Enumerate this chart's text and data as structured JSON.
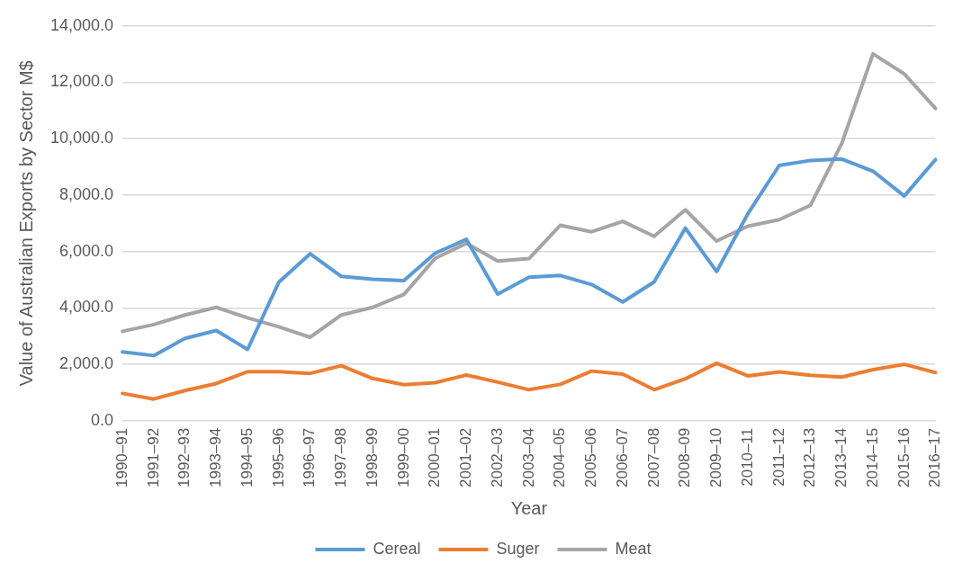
{
  "chart_data": {
    "type": "line",
    "xlabel": "Year",
    "ylabel": "Value of Australian Exports by Sector M$",
    "categories": [
      "1990–91",
      "1991–92",
      "1992–93",
      "1993–94",
      "1994–95",
      "1995–96",
      "1996–97",
      "1997–98",
      "1998–99",
      "1999–00",
      "2000–01",
      "2001–02",
      "2002–03",
      "2003–04",
      "2004–05",
      "2005–06",
      "2006–07",
      "2007–08",
      "2008–09",
      "2009–10",
      "2010–11",
      "2011–12",
      "2012–13",
      "2013–14",
      "2014–15",
      "2015–16",
      "2016–17"
    ],
    "series": [
      {
        "name": "Cereal",
        "color": "#5b9bd5",
        "values": [
          2440,
          2310,
          2920,
          3200,
          2530,
          4910,
          5920,
          5120,
          5020,
          4970,
          5940,
          6430,
          4490,
          5090,
          5150,
          4830,
          4210,
          4920,
          6830,
          5290,
          7340,
          9050,
          9230,
          9280,
          8850,
          7970,
          9260
        ]
      },
      {
        "name": "Suger",
        "color": "#ed7d31",
        "values": [
          970,
          770,
          1070,
          1320,
          1740,
          1740,
          1680,
          1950,
          1500,
          1280,
          1350,
          1620,
          1370,
          1100,
          1290,
          1760,
          1650,
          1100,
          1490,
          2040,
          1590,
          1730,
          1610,
          1550,
          1810,
          2000,
          1710
        ]
      },
      {
        "name": "Meat",
        "color": "#a5a5a5",
        "values": [
          3170,
          3410,
          3750,
          4020,
          3650,
          3330,
          2960,
          3750,
          4020,
          4480,
          5760,
          6290,
          5660,
          5750,
          6930,
          6700,
          7070,
          6540,
          7480,
          6370,
          6900,
          7130,
          7640,
          9830,
          13010,
          12300,
          11070
        ]
      }
    ],
    "ylim": [
      0,
      14000
    ],
    "yticks": [
      {
        "value": 0,
        "label": "0.0"
      },
      {
        "value": 2000,
        "label": "2,000.0"
      },
      {
        "value": 4000,
        "label": "4,000.0"
      },
      {
        "value": 6000,
        "label": "6,000.0"
      },
      {
        "value": 8000,
        "label": "8,000.0"
      },
      {
        "value": 10000,
        "label": "10,000.0"
      },
      {
        "value": 12000,
        "label": "12,000.0"
      },
      {
        "value": 14000,
        "label": "14,000.0"
      }
    ],
    "grid": "y",
    "legend": "bottom",
    "marker": "none",
    "line_style": "solid"
  }
}
